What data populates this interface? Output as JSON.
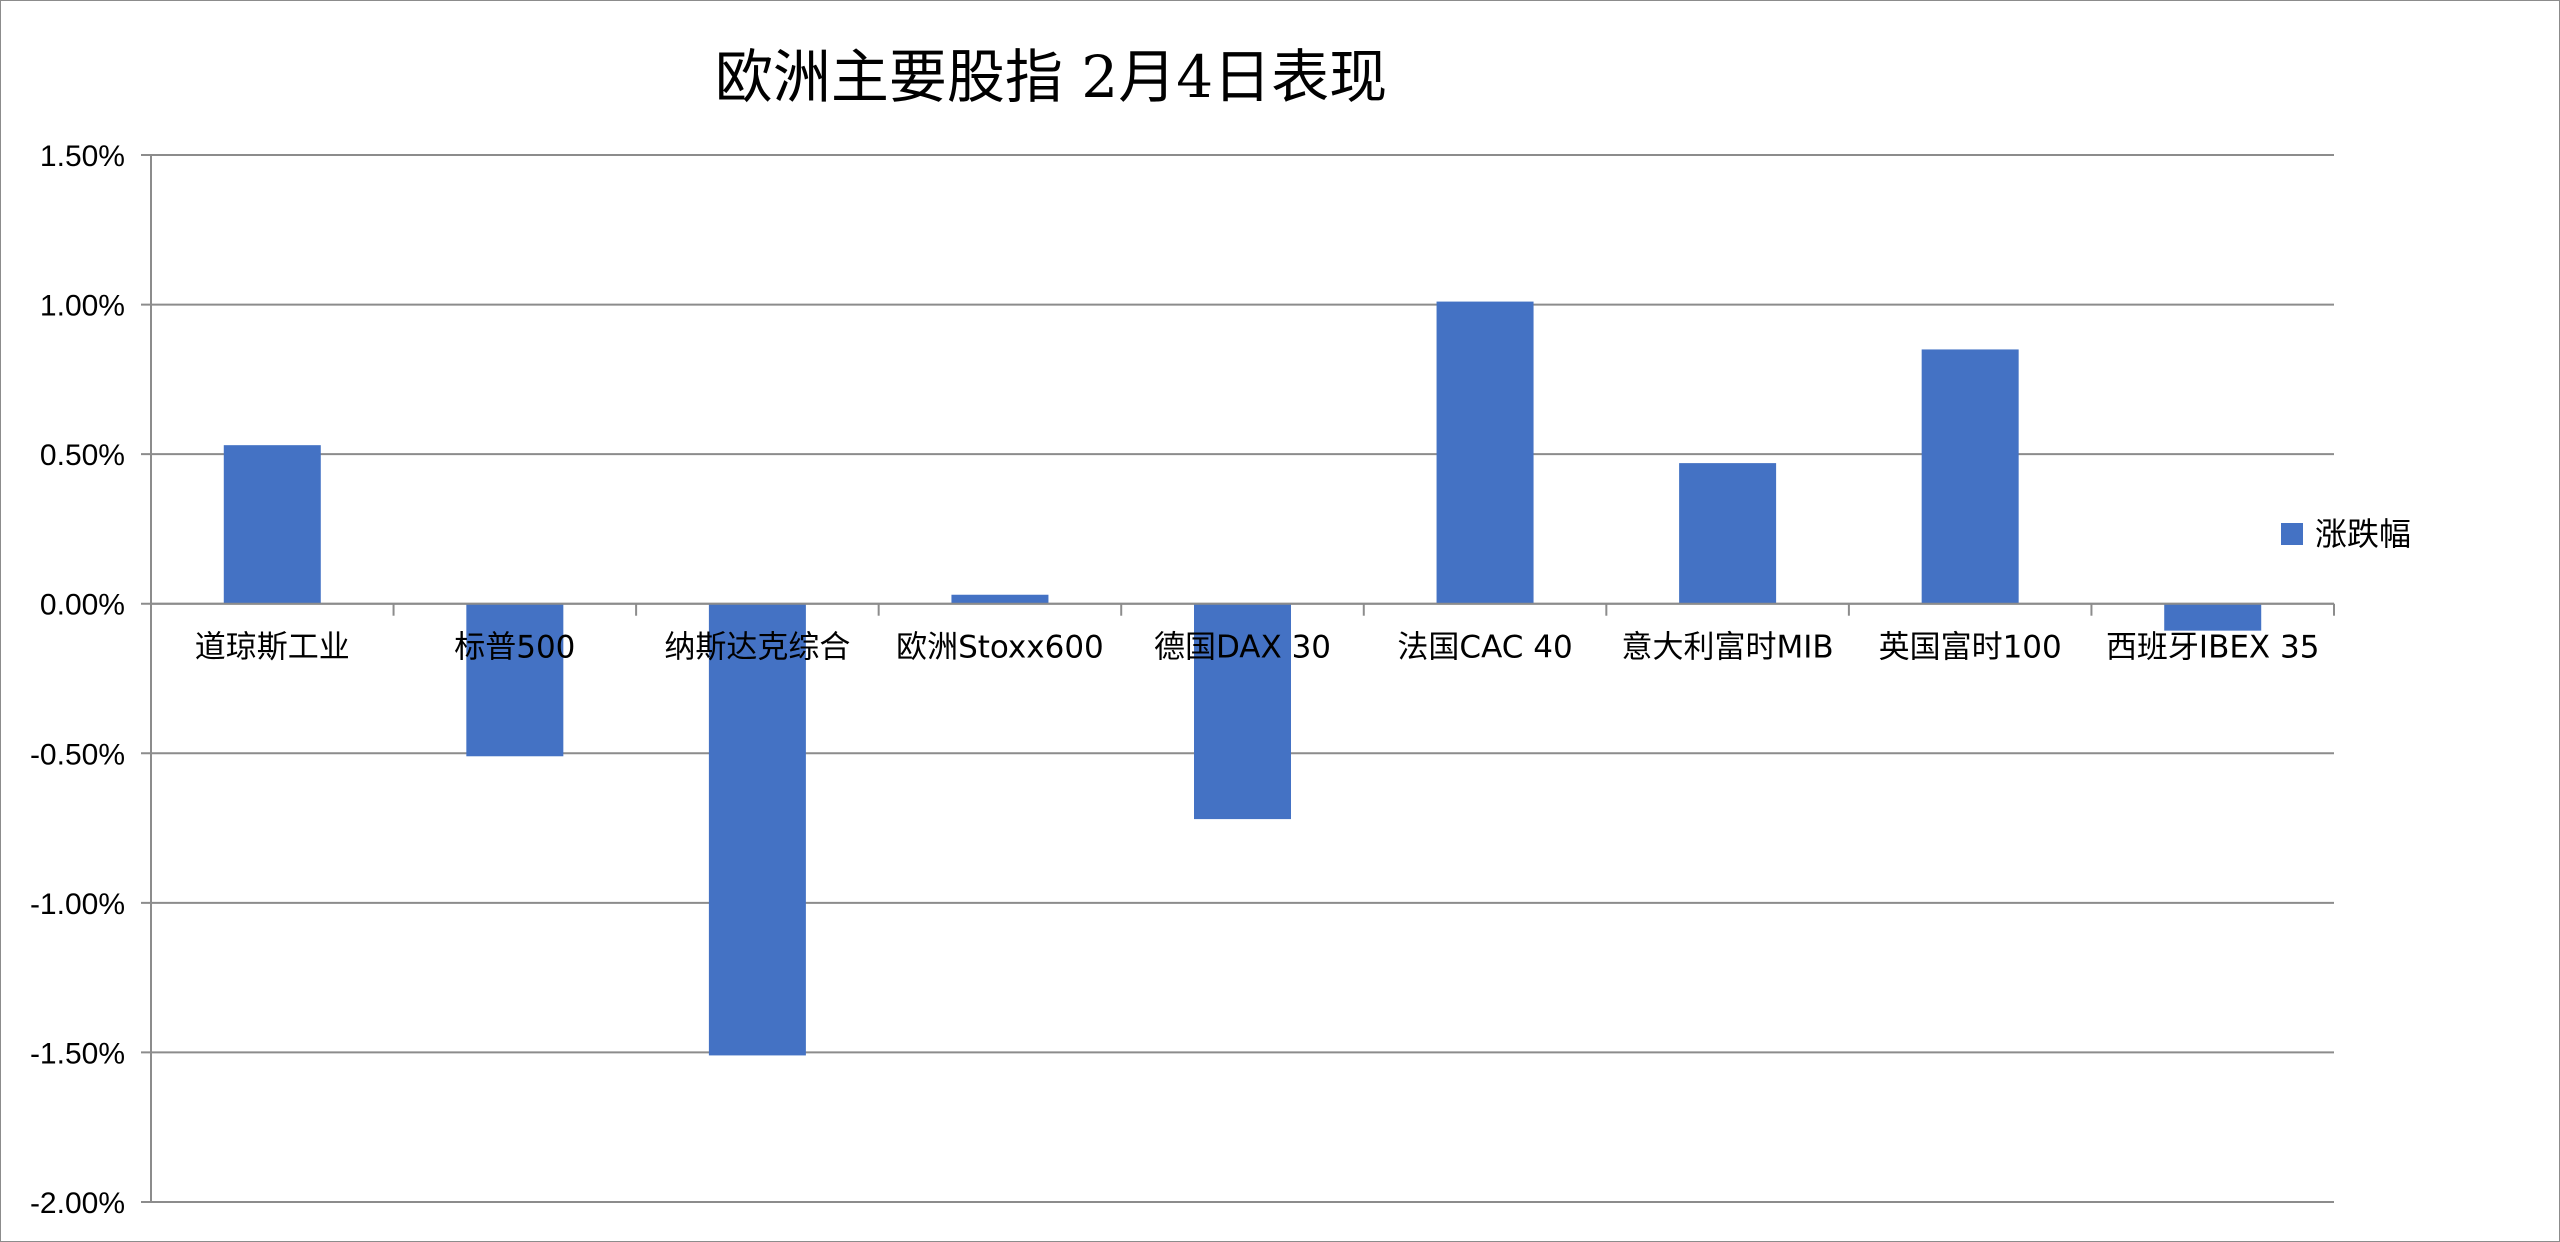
{
  "chart_data": {
    "type": "bar",
    "title": "欧洲主要股指   2月4日表现",
    "categories": [
      "道琼斯工业",
      "标普500",
      "纳斯达克综合",
      "欧洲Stoxx600",
      "德国DAX 30",
      "法国CAC 40",
      "意大利富时MIB",
      "英国富时100",
      "西班牙IBEX 35"
    ],
    "series": [
      {
        "name": "涨跌幅",
        "color": "#4472C4",
        "values": [
          0.53,
          -0.51,
          -1.51,
          0.03,
          -0.72,
          1.01,
          0.47,
          0.85,
          -0.09
        ]
      }
    ],
    "ylim": [
      -2.0,
      1.5
    ],
    "yticks": [
      1.5,
      1.0,
      0.5,
      0.0,
      -0.5,
      -1.0,
      -1.5,
      -2.0
    ],
    "ytick_labels": [
      "1.50%",
      "1.00%",
      "0.50%",
      "0.00%",
      "-0.50%",
      "-1.00%",
      "-1.50%",
      "-2.00%"
    ],
    "value_unit": "%",
    "grid": true,
    "legend_position": "right"
  }
}
